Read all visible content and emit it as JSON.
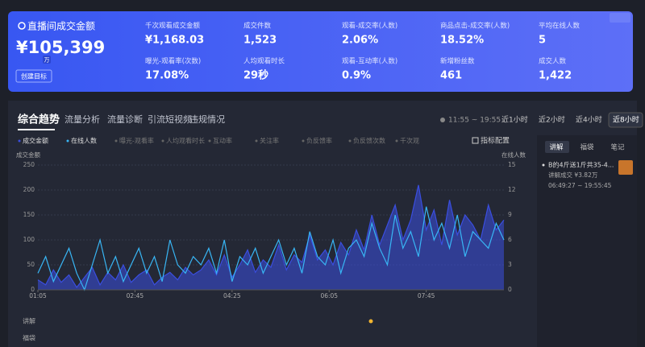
{
  "header": {
    "title": "直播间成交金额",
    "amount": "¥105,399",
    "unit": "万",
    "button": "创建目标",
    "metrics": [
      {
        "label": "千次观看成交金额",
        "value": "¥1,168.03"
      },
      {
        "label": "成交件数",
        "value": "1,523"
      },
      {
        "label": "观看-成交率(人数)",
        "value": "2.06%"
      },
      {
        "label": "商品点击-成交率(人数)",
        "value": "18.52%"
      },
      {
        "label": "平均在线人数",
        "value": "5"
      },
      {
        "label": "曝光-观看率(次数)",
        "value": "17.08%"
      },
      {
        "label": "人均观看时长",
        "value": "29秒"
      },
      {
        "label": "观看-互动率(人数)",
        "value": "0.9%"
      },
      {
        "label": "新增粉丝数",
        "value": "461"
      },
      {
        "label": "成交人数",
        "value": "1,422"
      }
    ]
  },
  "tabs": [
    "综合趋势",
    "流量分析",
    "流量诊断",
    "引流短视频",
    "违规情况"
  ],
  "time_range": "11:55 ~ 19:55",
  "range_buttons": [
    "近1小时",
    "近2小时",
    "近4小时",
    "近8小时"
  ],
  "metric_options": [
    "曝光-观看率",
    "人均观看时长",
    "互动率",
    "关注率",
    "负反馈率",
    "负反馈次数",
    "千次观"
  ],
  "metric_config": "指标配置",
  "chart_data": {
    "type": "line",
    "x": [
      0,
      8,
      16,
      24,
      32,
      40,
      48,
      56,
      64,
      72,
      80,
      88,
      96,
      104,
      112,
      120,
      128,
      136,
      144,
      152,
      160,
      168,
      176,
      184,
      192,
      200,
      208,
      216,
      224,
      232,
      240,
      248,
      256,
      264,
      272,
      280,
      288,
      296,
      304,
      312,
      320,
      328,
      336,
      344,
      352,
      360,
      368,
      376,
      384,
      392,
      400,
      408,
      416,
      424,
      432,
      440,
      448,
      456,
      464,
      472,
      480
    ],
    "xlim": [
      0,
      480
    ],
    "xticks": [
      {
        "value": 0,
        "label": "01:05"
      },
      {
        "value": 100,
        "label": "02:45"
      },
      {
        "value": 200,
        "label": "04:25"
      },
      {
        "value": 300,
        "label": "06:05"
      },
      {
        "value": 400,
        "label": "07:45"
      }
    ],
    "y_label": "成交金额",
    "y2_label": "在线人数",
    "ylim": [
      0,
      250
    ],
    "yticks": [
      0,
      50,
      100,
      150,
      200,
      250
    ],
    "y2lim": [
      0,
      15
    ],
    "y2ticks": [
      0,
      3,
      6,
      9,
      12,
      15
    ],
    "grid": true,
    "series": [
      {
        "name": "成交金额",
        "color": "#3a4ee0",
        "area": true,
        "values": [
          20,
          10,
          40,
          15,
          30,
          5,
          25,
          45,
          10,
          35,
          20,
          50,
          15,
          30,
          40,
          10,
          25,
          35,
          20,
          45,
          30,
          40,
          60,
          30,
          70,
          25,
          50,
          80,
          35,
          60,
          45,
          90,
          40,
          70,
          55,
          110,
          60,
          80,
          50,
          95,
          70,
          120,
          80,
          150,
          90,
          130,
          170,
          100,
          140,
          210,
          120,
          160,
          90,
          180,
          110,
          150,
          130,
          100,
          170,
          120,
          140
        ]
      },
      {
        "name": "在线人数",
        "color": "#38b6f5",
        "axis": "y2",
        "values": [
          2,
          4,
          1,
          3,
          5,
          2,
          0,
          3,
          6,
          2,
          4,
          1,
          3,
          5,
          2,
          4,
          1,
          6,
          3,
          2,
          4,
          3,
          5,
          2,
          6,
          1,
          4,
          3,
          5,
          2,
          4,
          6,
          3,
          5,
          2,
          7,
          4,
          3,
          6,
          2,
          5,
          6,
          4,
          8,
          5,
          3,
          9,
          5,
          7,
          4,
          10,
          6,
          8,
          5,
          9,
          4,
          7,
          6,
          5,
          8,
          6
        ]
      }
    ]
  },
  "bottom_rows": [
    "讲解",
    "福袋"
  ],
  "side_panel": {
    "tabs": [
      "讲解",
      "福袋",
      "笔记"
    ],
    "item": {
      "title": "B的4斤送1斤共35-4...",
      "stat": "讲解成交 ¥3.82万",
      "time": "06:49:27 ~ 19:55:45"
    }
  }
}
